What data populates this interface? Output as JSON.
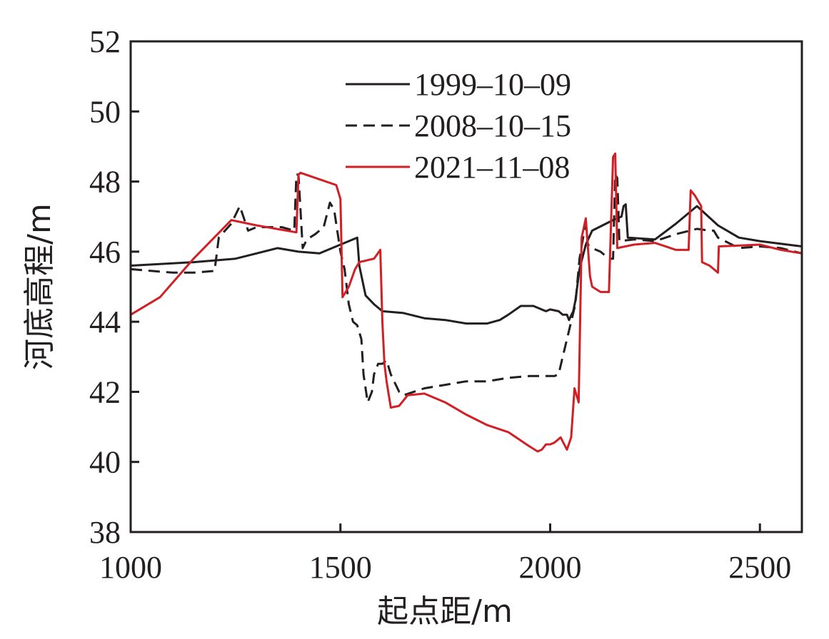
{
  "chart_data": {
    "type": "line",
    "title": "",
    "xlabel": "起点距/m",
    "ylabel": "河底高程/m",
    "xlim": [
      1000,
      2600
    ],
    "ylim": [
      38,
      52
    ],
    "xticks": [
      1000,
      1500,
      2000,
      2500
    ],
    "xtick_labels": [
      "1000",
      "1500",
      "2000",
      "2500"
    ],
    "yticks": [
      38,
      40,
      42,
      44,
      46,
      48,
      50,
      52
    ],
    "ytick_labels": [
      "38",
      "40",
      "42",
      "44",
      "46",
      "48",
      "50",
      "52"
    ],
    "grid": false,
    "legend_position": "top-center",
    "series": [
      {
        "name": "1999–10–09",
        "color": "#231f20",
        "dash": "solid",
        "points": [
          [
            1000,
            45.6
          ],
          [
            1150,
            45.7
          ],
          [
            1250,
            45.8
          ],
          [
            1300,
            45.95
          ],
          [
            1350,
            46.1
          ],
          [
            1400,
            46.0
          ],
          [
            1450,
            45.95
          ],
          [
            1500,
            46.2
          ],
          [
            1540,
            46.4
          ],
          [
            1545,
            45.6
          ],
          [
            1560,
            44.75
          ],
          [
            1580,
            44.5
          ],
          [
            1600,
            44.3
          ],
          [
            1650,
            44.25
          ],
          [
            1700,
            44.1
          ],
          [
            1750,
            44.05
          ],
          [
            1800,
            43.95
          ],
          [
            1850,
            43.95
          ],
          [
            1880,
            44.05
          ],
          [
            1900,
            44.2
          ],
          [
            1930,
            44.45
          ],
          [
            1960,
            44.45
          ],
          [
            1990,
            44.3
          ],
          [
            2000,
            44.35
          ],
          [
            2020,
            44.3
          ],
          [
            2030,
            44.2
          ],
          [
            2040,
            44.2
          ],
          [
            2045,
            44.05
          ],
          [
            2055,
            44.3
          ],
          [
            2060,
            44.6
          ],
          [
            2070,
            45.5
          ],
          [
            2085,
            46.2
          ],
          [
            2100,
            46.6
          ],
          [
            2150,
            46.9
          ],
          [
            2170,
            47.0
          ],
          [
            2175,
            47.3
          ],
          [
            2180,
            47.35
          ],
          [
            2185,
            46.4
          ],
          [
            2250,
            46.35
          ],
          [
            2300,
            46.8
          ],
          [
            2350,
            47.3
          ],
          [
            2400,
            46.75
          ],
          [
            2450,
            46.4
          ],
          [
            2500,
            46.3
          ],
          [
            2600,
            46.15
          ]
        ]
      },
      {
        "name": "2008–10–15",
        "color": "#231f20",
        "dash": "dashed",
        "points": [
          [
            1000,
            45.5
          ],
          [
            1050,
            45.45
          ],
          [
            1100,
            45.4
          ],
          [
            1150,
            45.4
          ],
          [
            1200,
            45.45
          ],
          [
            1210,
            46.4
          ],
          [
            1240,
            46.8
          ],
          [
            1260,
            47.3
          ],
          [
            1280,
            46.6
          ],
          [
            1300,
            46.7
          ],
          [
            1360,
            46.7
          ],
          [
            1390,
            46.6
          ],
          [
            1395,
            48.2
          ],
          [
            1400,
            48.2
          ],
          [
            1410,
            46.1
          ],
          [
            1420,
            46.35
          ],
          [
            1440,
            46.5
          ],
          [
            1460,
            46.7
          ],
          [
            1475,
            47.4
          ],
          [
            1485,
            47.2
          ],
          [
            1500,
            46.0
          ],
          [
            1510,
            45.5
          ],
          [
            1520,
            44.5
          ],
          [
            1530,
            44.0
          ],
          [
            1540,
            43.9
          ],
          [
            1550,
            43.5
          ],
          [
            1555,
            42.5
          ],
          [
            1565,
            41.7
          ],
          [
            1575,
            42.0
          ],
          [
            1580,
            42.5
          ],
          [
            1590,
            42.8
          ],
          [
            1600,
            42.8
          ],
          [
            1610,
            42.9
          ],
          [
            1620,
            42.5
          ],
          [
            1640,
            42.0
          ],
          [
            1650,
            41.9
          ],
          [
            1700,
            42.1
          ],
          [
            1750,
            42.2
          ],
          [
            1800,
            42.3
          ],
          [
            1850,
            42.3
          ],
          [
            1900,
            42.4
          ],
          [
            1950,
            42.45
          ],
          [
            2000,
            42.45
          ],
          [
            2010,
            42.45
          ],
          [
            2020,
            42.5
          ],
          [
            2030,
            43.0
          ],
          [
            2040,
            43.5
          ],
          [
            2050,
            44.0
          ],
          [
            2060,
            44.5
          ],
          [
            2070,
            45.8
          ],
          [
            2080,
            46.5
          ],
          [
            2085,
            46.8
          ],
          [
            2090,
            46.2
          ],
          [
            2100,
            46.1
          ],
          [
            2120,
            46.0
          ],
          [
            2140,
            45.8
          ],
          [
            2150,
            45.8
          ],
          [
            2155,
            48.2
          ],
          [
            2160,
            48.1
          ],
          [
            2165,
            46.3
          ],
          [
            2200,
            46.35
          ],
          [
            2250,
            46.3
          ],
          [
            2300,
            46.5
          ],
          [
            2350,
            46.65
          ],
          [
            2380,
            46.6
          ],
          [
            2390,
            46.6
          ],
          [
            2400,
            46.4
          ],
          [
            2450,
            46.1
          ],
          [
            2500,
            46.15
          ],
          [
            2550,
            46.1
          ],
          [
            2600,
            45.95
          ]
        ]
      },
      {
        "name": "2021–11–08",
        "color": "#d11f26",
        "dash": "solid",
        "points": [
          [
            1000,
            44.2
          ],
          [
            1070,
            44.7
          ],
          [
            1150,
            45.8
          ],
          [
            1240,
            46.9
          ],
          [
            1300,
            46.75
          ],
          [
            1395,
            46.55
          ],
          [
            1400,
            48.2
          ],
          [
            1405,
            48.25
          ],
          [
            1490,
            47.9
          ],
          [
            1500,
            47.5
          ],
          [
            1505,
            44.7
          ],
          [
            1520,
            45.0
          ],
          [
            1535,
            45.5
          ],
          [
            1545,
            45.7
          ],
          [
            1580,
            45.8
          ],
          [
            1595,
            46.05
          ],
          [
            1600,
            44.0
          ],
          [
            1605,
            42.8
          ],
          [
            1610,
            42.3
          ],
          [
            1620,
            41.55
          ],
          [
            1640,
            41.6
          ],
          [
            1660,
            41.9
          ],
          [
            1700,
            41.95
          ],
          [
            1750,
            41.7
          ],
          [
            1800,
            41.35
          ],
          [
            1850,
            41.05
          ],
          [
            1900,
            40.85
          ],
          [
            1950,
            40.45
          ],
          [
            1970,
            40.3
          ],
          [
            1980,
            40.35
          ],
          [
            1990,
            40.5
          ],
          [
            2000,
            40.5
          ],
          [
            2010,
            40.55
          ],
          [
            2025,
            40.7
          ],
          [
            2040,
            40.35
          ],
          [
            2050,
            40.7
          ],
          [
            2058,
            42.1
          ],
          [
            2068,
            41.7
          ],
          [
            2075,
            46.4
          ],
          [
            2085,
            46.95
          ],
          [
            2095,
            45.3
          ],
          [
            2100,
            45.0
          ],
          [
            2120,
            44.85
          ],
          [
            2140,
            44.85
          ],
          [
            2150,
            48.7
          ],
          [
            2155,
            48.8
          ],
          [
            2160,
            46.1
          ],
          [
            2200,
            46.2
          ],
          [
            2250,
            46.25
          ],
          [
            2300,
            46.05
          ],
          [
            2330,
            46.05
          ],
          [
            2335,
            47.75
          ],
          [
            2345,
            47.6
          ],
          [
            2360,
            47.3
          ],
          [
            2362,
            45.7
          ],
          [
            2380,
            45.6
          ],
          [
            2400,
            45.4
          ],
          [
            2402,
            46.15
          ],
          [
            2500,
            46.2
          ],
          [
            2550,
            46.05
          ],
          [
            2600,
            45.95
          ]
        ]
      }
    ]
  }
}
